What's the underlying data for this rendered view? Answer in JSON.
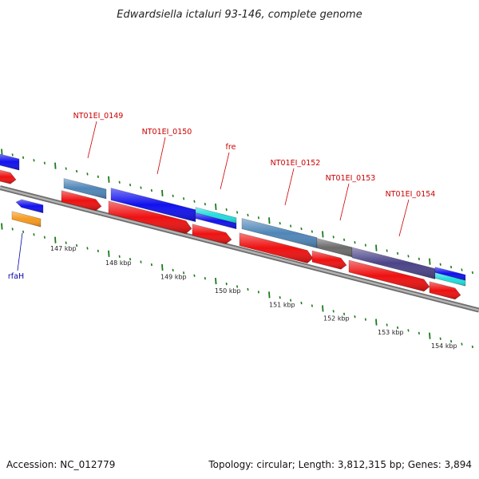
{
  "title": "Edwardsiella ictaluri 93-146, complete genome",
  "footer": {
    "accession": "Accession: NC_012779",
    "summary": "Topology: circular; Length: 3,812,315 bp; Genes: 3,894"
  },
  "colors": {
    "backbone": "#8c8c8c",
    "tick": "#1a7a1a",
    "label_forward": "#cc0000",
    "label_reverse": "#0000aa",
    "cds_red": "#ee1111",
    "blue": "#1111ee",
    "cyan": "#22dddd",
    "steel": "#4f86b8",
    "gray": "#6b6b6b",
    "purple": "#4b4488",
    "orange": "#f59a1e"
  },
  "scale": {
    "unit": "kbp",
    "ticks": [
      {
        "label": "147 kbp"
      },
      {
        "label": "148 kbp"
      },
      {
        "label": "149 kbp"
      },
      {
        "label": "150 kbp"
      },
      {
        "label": "151 kbp"
      },
      {
        "label": "152 kbp"
      },
      {
        "label": "153 kbp"
      },
      {
        "label": "154 kbp"
      }
    ]
  },
  "genes": [
    {
      "label": "NT01EI_0149",
      "strand": "forward"
    },
    {
      "label": "NT01EI_0150",
      "strand": "forward"
    },
    {
      "label": "fre",
      "strand": "forward"
    },
    {
      "label": "NT01EI_0152",
      "strand": "forward"
    },
    {
      "label": "NT01EI_0153",
      "strand": "forward"
    },
    {
      "label": "NT01EI_0154",
      "strand": "forward"
    },
    {
      "label": "rfaH",
      "strand": "reverse"
    }
  ]
}
